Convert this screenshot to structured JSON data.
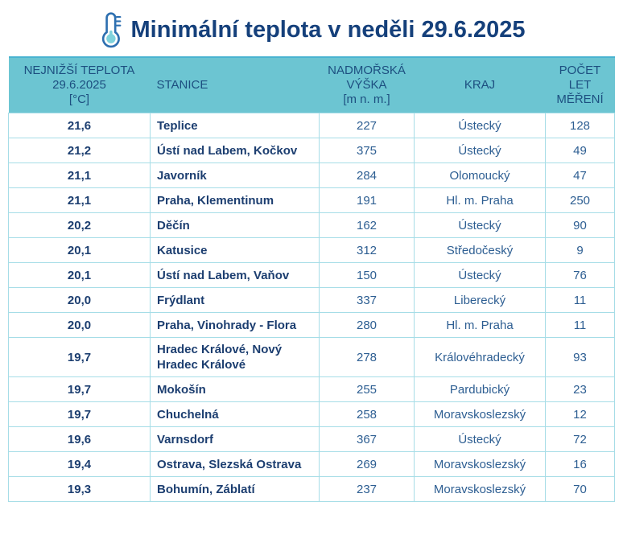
{
  "title": {
    "icon": "thermometer-icon",
    "text": "Minimální teplota v neděli 29.6.2025"
  },
  "colors": {
    "header_background": "#6cc5d2",
    "header_top_accent": "#49b3d1",
    "grid_border": "#a6dde7",
    "title_text": "#15407b",
    "bold_cell_text": "#1c3e70",
    "regular_cell_text": "#2d5e92",
    "icon_outline": "#2d6fb0",
    "icon_bulb_fill": "#7fd2dc"
  },
  "chart_data": {
    "type": "table",
    "title": "Minimální teplota v neděli 29.6.2025",
    "columns": [
      {
        "key": "temp",
        "lines": [
          "NEJNIŽŠÍ TEPLOTA",
          "29.6.2025",
          "[°C]"
        ]
      },
      {
        "key": "station",
        "lines": [
          "STANICE"
        ]
      },
      {
        "key": "altitude",
        "lines": [
          "NADMOŘSKÁ",
          "VÝŠKA",
          "[m n. m.]"
        ]
      },
      {
        "key": "region",
        "lines": [
          "KRAJ"
        ]
      },
      {
        "key": "years",
        "lines": [
          "POČET",
          "LET",
          "MĚŘENÍ"
        ]
      }
    ],
    "rows": [
      {
        "temp": "21,6",
        "station": "Teplice",
        "altitude": "227",
        "region": "Ústecký",
        "years": "128"
      },
      {
        "temp": "21,2",
        "station": "Ústí nad Labem, Kočkov",
        "altitude": "375",
        "region": "Ústecký",
        "years": "49"
      },
      {
        "temp": "21,1",
        "station": "Javorník",
        "altitude": "284",
        "region": "Olomoucký",
        "years": "47"
      },
      {
        "temp": "21,1",
        "station": "Praha, Klementinum",
        "altitude": "191",
        "region": "Hl. m. Praha",
        "years": "250"
      },
      {
        "temp": "20,2",
        "station": "Děčín",
        "altitude": "162",
        "region": "Ústecký",
        "years": "90"
      },
      {
        "temp": "20,1",
        "station": "Katusice",
        "altitude": "312",
        "region": "Středočeský",
        "years": "9"
      },
      {
        "temp": "20,1",
        "station": "Ústí nad Labem, Vaňov",
        "altitude": "150",
        "region": "Ústecký",
        "years": "76"
      },
      {
        "temp": "20,0",
        "station": "Frýdlant",
        "altitude": "337",
        "region": "Liberecký",
        "years": "11"
      },
      {
        "temp": "20,0",
        "station": "Praha, Vinohrady - Flora",
        "altitude": "280",
        "region": "Hl. m. Praha",
        "years": "11"
      },
      {
        "temp": "19,7",
        "station": "Hradec Králové, Nový Hradec Králové",
        "altitude": "278",
        "region": "Královéhradecký",
        "years": "93"
      },
      {
        "temp": "19,7",
        "station": "Mokošín",
        "altitude": "255",
        "region": "Pardubický",
        "years": "23"
      },
      {
        "temp": "19,7",
        "station": "Chuchelná",
        "altitude": "258",
        "region": "Moravskoslezský",
        "years": "12"
      },
      {
        "temp": "19,6",
        "station": "Varnsdorf",
        "altitude": "367",
        "region": "Ústecký",
        "years": "72"
      },
      {
        "temp": "19,4",
        "station": "Ostrava, Slezská Ostrava",
        "altitude": "269",
        "region": "Moravskoslezský",
        "years": "16"
      },
      {
        "temp": "19,3",
        "station": "Bohumín, Záblatí",
        "altitude": "237",
        "region": "Moravskoslezský",
        "years": "70"
      }
    ]
  }
}
